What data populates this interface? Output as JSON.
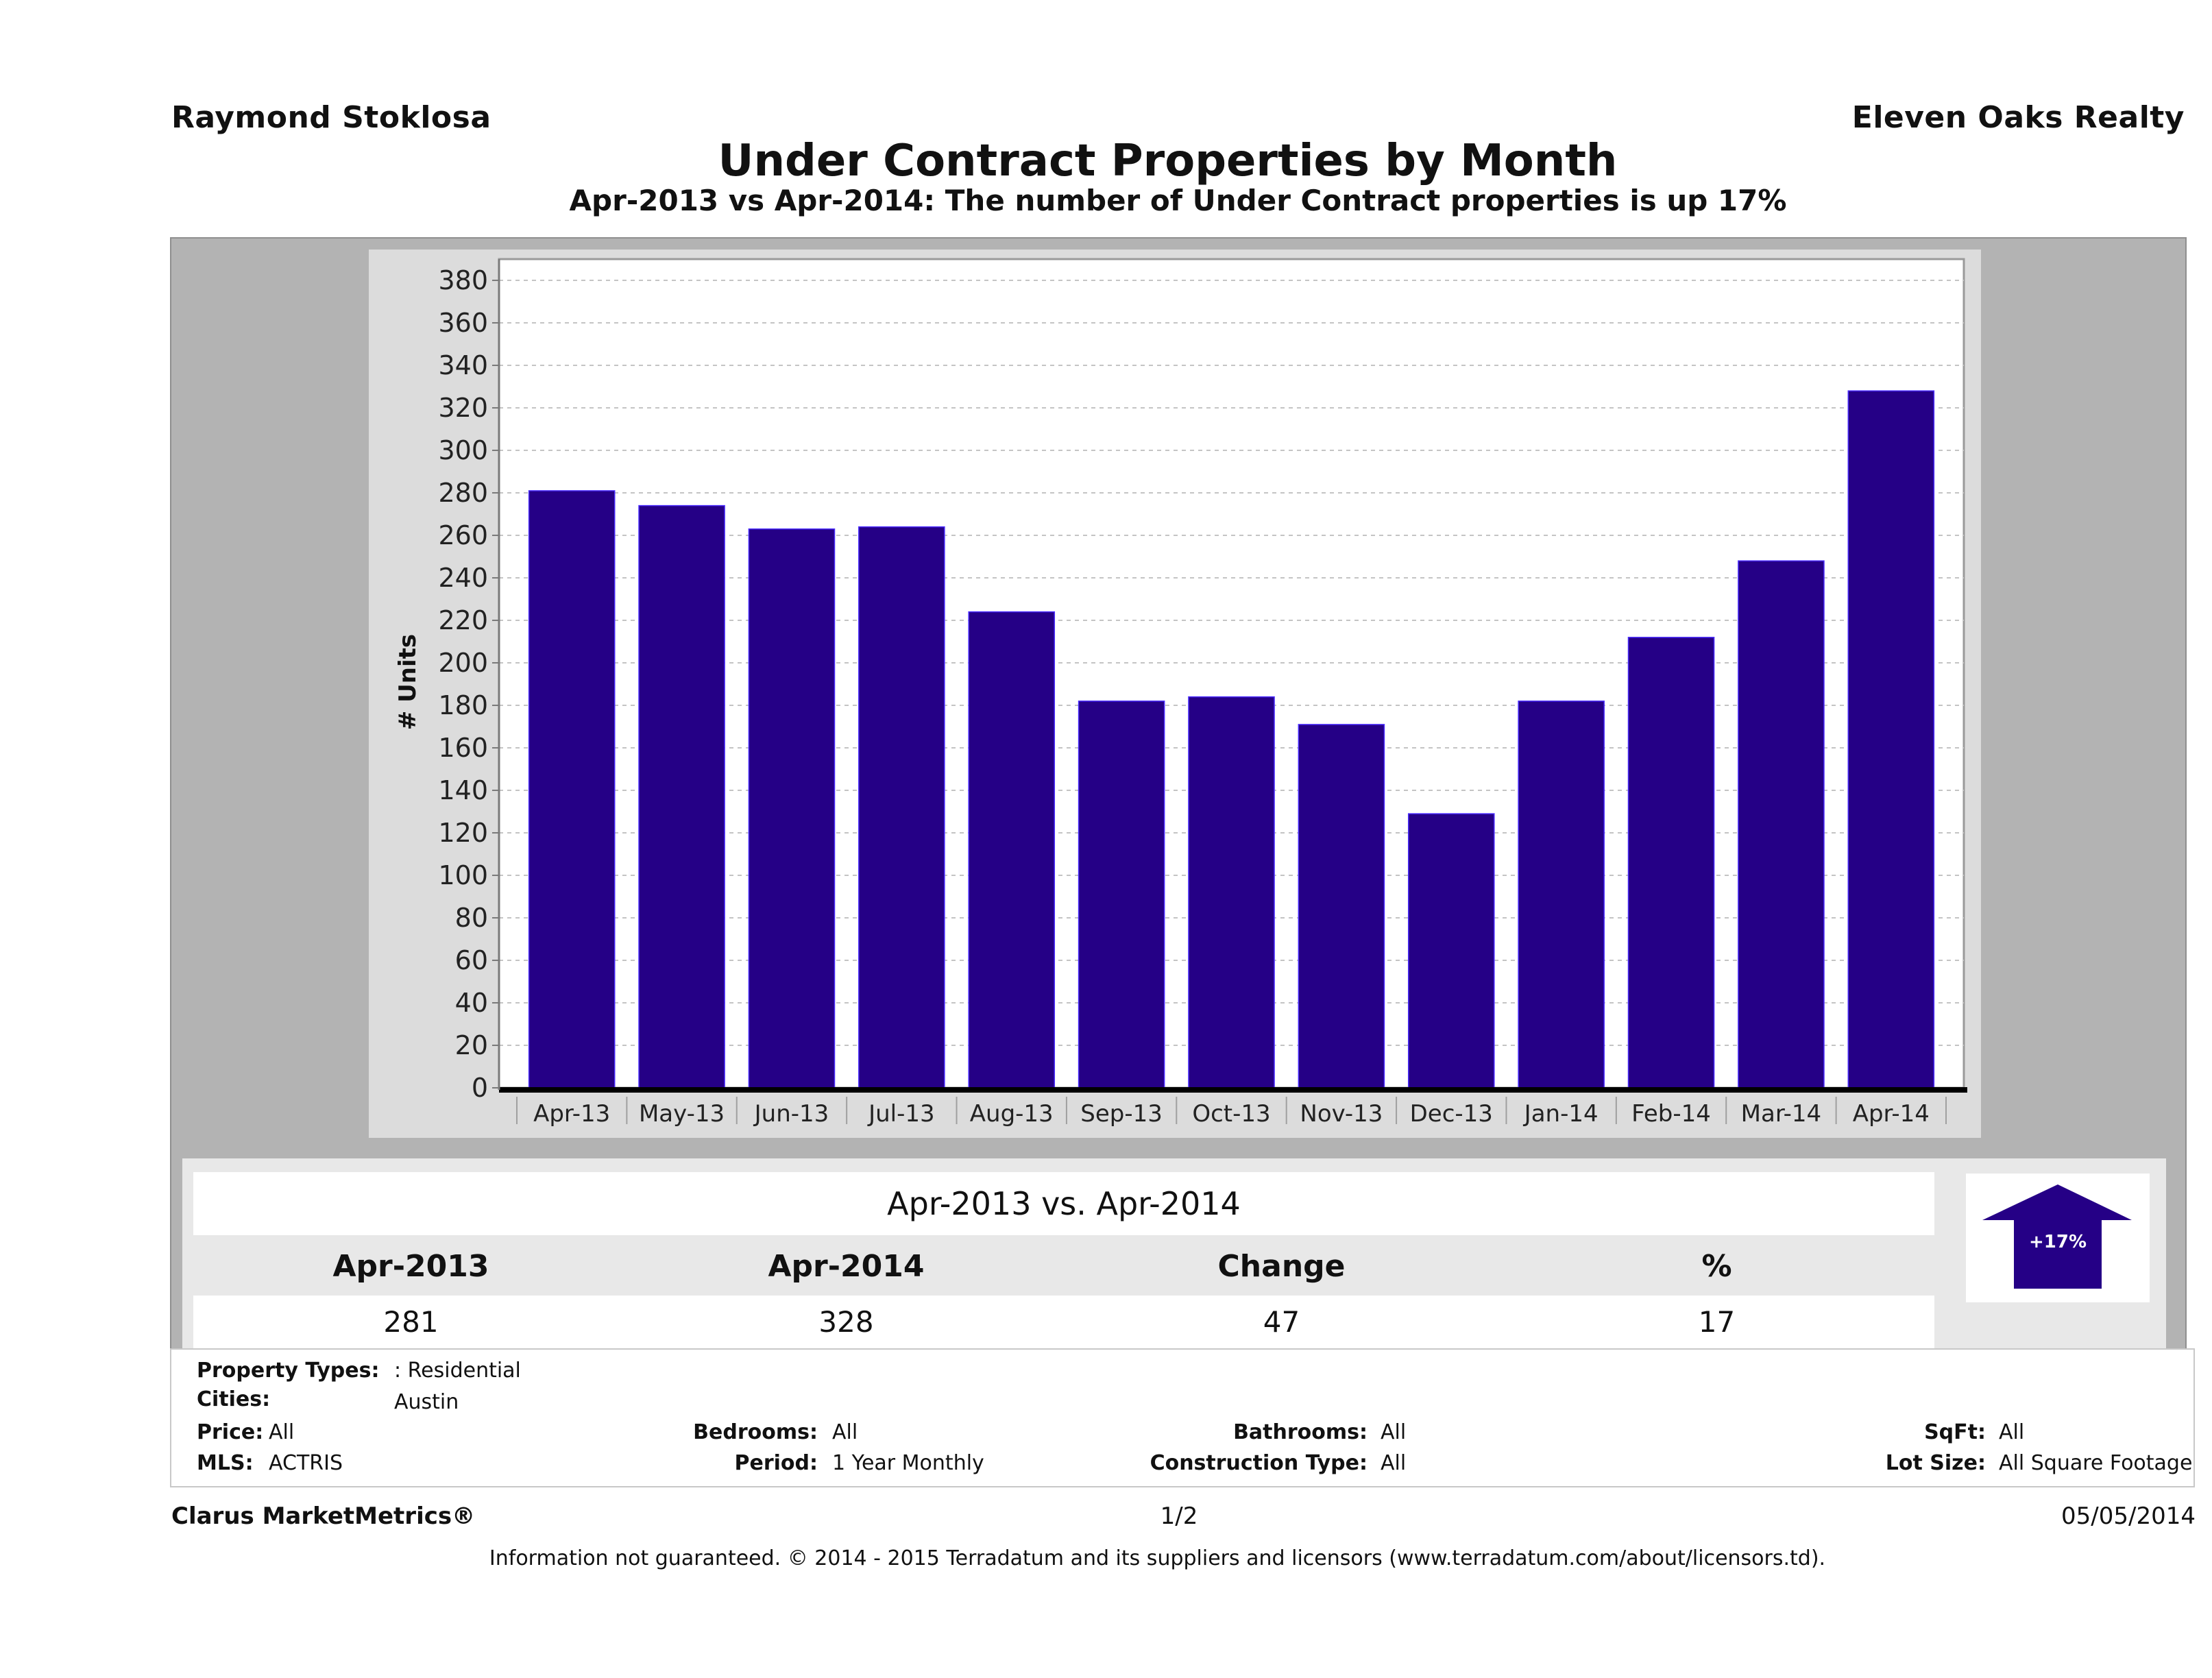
{
  "header": {
    "agent_name": "Raymond Stoklosa",
    "company_name": "Eleven Oaks Realty",
    "title": "Under Contract Properties by Month",
    "subtitle": "Apr-2013 vs Apr-2014: The number of Under Contract  properties is up 17%"
  },
  "colors": {
    "bar": "#250086",
    "outer_panel": "#b3b3b3",
    "chart_panel": "#dcdcdc",
    "plot_bg": "#ffffff"
  },
  "chart_data": {
    "type": "bar",
    "title": "Under Contract Properties by Month",
    "xlabel": "",
    "ylabel": "# Units",
    "ylim": [
      0,
      390
    ],
    "yticks": [
      0,
      20,
      40,
      60,
      80,
      100,
      120,
      140,
      160,
      180,
      200,
      220,
      240,
      260,
      280,
      300,
      320,
      340,
      360,
      380
    ],
    "grid": true,
    "legend": "none",
    "categories": [
      "Apr-13",
      "May-13",
      "Jun-13",
      "Jul-13",
      "Aug-13",
      "Sep-13",
      "Oct-13",
      "Nov-13",
      "Dec-13",
      "Jan-14",
      "Feb-14",
      "Mar-14",
      "Apr-14"
    ],
    "series": [
      {
        "name": "Under Contract",
        "values": [
          281,
          274,
          263,
          264,
          224,
          182,
          184,
          171,
          129,
          182,
          212,
          248,
          328
        ]
      }
    ]
  },
  "summary": {
    "title": "Apr-2013 vs. Apr-2014",
    "headers": [
      "Apr-2013",
      "Apr-2014",
      "Change",
      "%"
    ],
    "values": [
      "281",
      "328",
      "47",
      "17"
    ],
    "badge": {
      "icon": "up-arrow-icon",
      "label": "+17%",
      "change_percent": 17
    }
  },
  "filters": {
    "property_types": {
      "label": "Property Types:",
      "value": ": Residential"
    },
    "cities": {
      "label": "Cities:",
      "value": "Austin"
    },
    "price": {
      "label": "Price:",
      "value": "All"
    },
    "mls": {
      "label": "MLS:",
      "value": "ACTRIS"
    },
    "bedrooms": {
      "label": "Bedrooms:",
      "value": "All"
    },
    "period": {
      "label": "Period:",
      "value": "1 Year Monthly"
    },
    "bathrooms": {
      "label": "Bathrooms:",
      "value": "All"
    },
    "construction_type": {
      "label": "Construction Type:",
      "value": "All"
    },
    "sqft": {
      "label": "SqFt:",
      "value": "All"
    },
    "lot_size": {
      "label": "Lot Size:",
      "value": "All Square Footage"
    }
  },
  "footer": {
    "brand": "Clarus MarketMetrics®",
    "page": "1/2",
    "date": "05/05/2014",
    "disclaimer": "Information not guaranteed. © 2014 - 2015 Terradatum and its suppliers and licensors (www.terradatum.com/about/licensors.td)."
  }
}
